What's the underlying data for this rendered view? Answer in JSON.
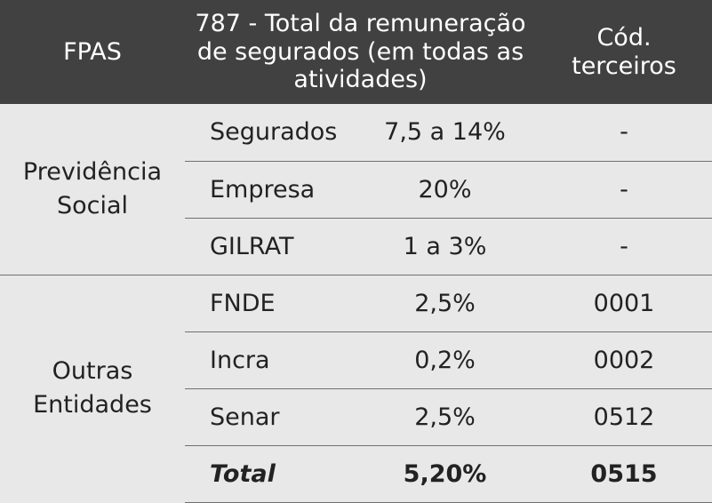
{
  "header": {
    "col1": "FPAS",
    "col2": "787 - Total da remuneração de segurados (em todas as atividades)",
    "col3": "",
    "col4": "Cód. terceiros"
  },
  "groups": [
    {
      "label": "Previdência Social",
      "rows": [
        {
          "name": "Segurados",
          "rate": "7,5 a 14%",
          "code": "-"
        },
        {
          "name": "Empresa",
          "rate": "20%",
          "code": "-"
        },
        {
          "name": "GILRAT",
          "rate": "1 a 3%",
          "code": "-"
        }
      ]
    },
    {
      "label": "Outras Entidades",
      "rows": [
        {
          "name": "FNDE",
          "rate": "2,5%",
          "code": "0001"
        },
        {
          "name": "Incra",
          "rate": "0,2%",
          "code": "0002"
        },
        {
          "name": "Senar",
          "rate": "2,5%",
          "code": "0512"
        }
      ]
    }
  ],
  "total": {
    "label": "Total",
    "rate": "5,20%",
    "code": "0515"
  }
}
